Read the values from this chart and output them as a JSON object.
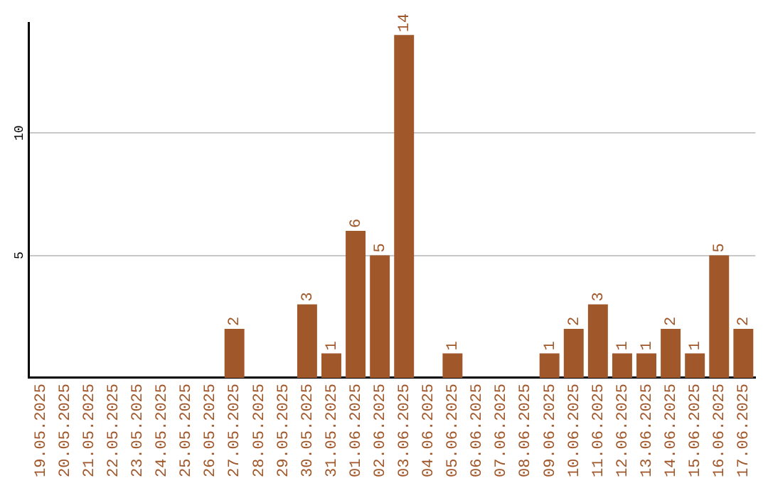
{
  "chart_data": {
    "type": "bar",
    "categories": [
      "19.05.2025",
      "20.05.2025",
      "21.05.2025",
      "22.05.2025",
      "23.05.2025",
      "24.05.2025",
      "25.05.2025",
      "26.05.2025",
      "27.05.2025",
      "28.05.2025",
      "29.05.2025",
      "30.05.2025",
      "31.05.2025",
      "01.06.2025",
      "02.06.2025",
      "03.06.2025",
      "04.06.2025",
      "05.06.2025",
      "06.06.2025",
      "07.06.2025",
      "08.06.2025",
      "09.06.2025",
      "10.06.2025",
      "11.06.2025",
      "12.06.2025",
      "13.06.2025",
      "14.06.2025",
      "15.06.2025",
      "16.06.2025",
      "17.06.2025"
    ],
    "values": [
      0,
      0,
      0,
      0,
      0,
      0,
      0,
      0,
      2,
      0,
      0,
      3,
      1,
      6,
      5,
      14,
      0,
      1,
      0,
      0,
      0,
      1,
      2,
      3,
      1,
      1,
      2,
      1,
      5,
      2
    ],
    "value_labels": [
      null,
      null,
      null,
      null,
      null,
      null,
      null,
      null,
      "2",
      null,
      null,
      "3",
      "1",
      "6",
      "5",
      "14",
      null,
      "1",
      null,
      null,
      null,
      "1",
      "2",
      "3",
      "1",
      "1",
      "2",
      "1",
      "5",
      "2"
    ],
    "color": "#a0572a",
    "ylim": [
      0,
      14.5
    ],
    "yticks": [
      5,
      10
    ],
    "grid": "y",
    "legend": false
  }
}
